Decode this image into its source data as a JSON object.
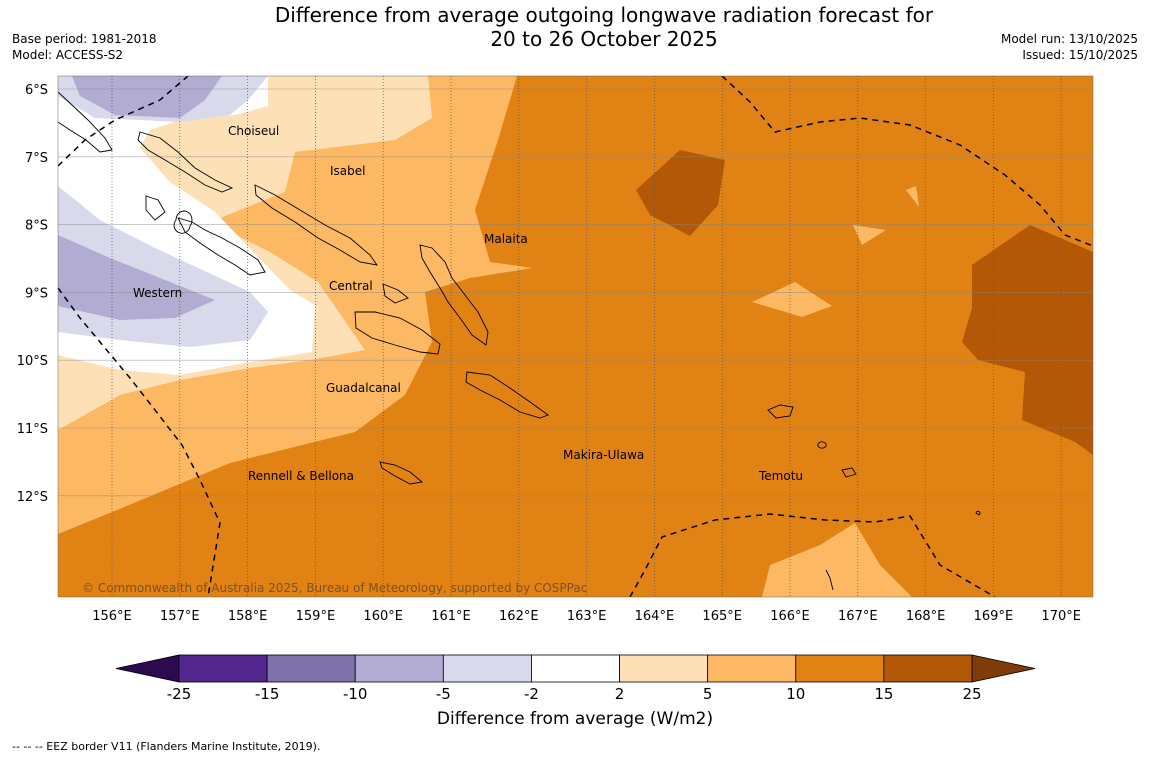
{
  "title": {
    "line1": "Difference from average outgoing longwave radiation forecast for",
    "line2": "20 to 26 October 2025"
  },
  "meta_left": {
    "base_period": "Base period: 1981-2018",
    "model": "Model: ACCESS-S2"
  },
  "meta_right": {
    "model_run": "Model run: 13/10/2025",
    "issued": "Issued: 15/10/2025"
  },
  "axes": {
    "lat_labels": [
      "6°S",
      "7°S",
      "8°S",
      "9°S",
      "10°S",
      "11°S",
      "12°S"
    ],
    "lon_labels": [
      "156°E",
      "157°E",
      "158°E",
      "159°E",
      "160°E",
      "161°E",
      "162°E",
      "163°E",
      "164°E",
      "165°E",
      "166°E",
      "167°E",
      "168°E",
      "169°E",
      "170°E"
    ]
  },
  "regions": [
    {
      "name": "Choiseul"
    },
    {
      "name": "Isabel"
    },
    {
      "name": "Malaita"
    },
    {
      "name": "Western"
    },
    {
      "name": "Central"
    },
    {
      "name": "Guadalcanal"
    },
    {
      "name": "Makira-Ulawa"
    },
    {
      "name": "Rennell & Bellona"
    },
    {
      "name": "Temotu"
    }
  ],
  "copyright": "© Commonwealth of Australia 2025, Bureau of Meteorology, supported by COSPPac",
  "colorbar": {
    "label": "Difference from average (W/m2)",
    "ticks": [
      "-25",
      "-15",
      "-10",
      "-5",
      "-2",
      "2",
      "5",
      "10",
      "15",
      "25"
    ],
    "colors": {
      "lt_m25": "#2d0a4e",
      "m25_m15": "#54278f",
      "m15_m10": "#8073ac",
      "m10_m5": "#b2abd2",
      "m5_m2": "#d8daeb",
      "m2_2": "#ffffff",
      "p2_5": "#fee0b6",
      "p5_10": "#fdb863",
      "p10_15": "#e08214",
      "p15_25": "#b35806",
      "gt_25": "#7f3b08"
    }
  },
  "footnote": "--  --  -- EEZ border V11 (Flanders Marine Institute, 2019)."
}
